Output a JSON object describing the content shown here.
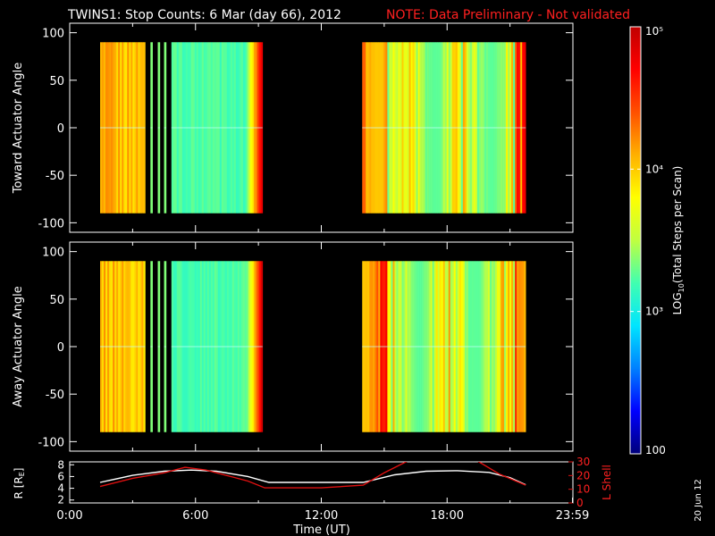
{
  "title": {
    "main": "TWINS1: Stop Counts:  6 Mar (day  66), 2012",
    "note": "NOTE: Data Preliminary - Not validated"
  },
  "date_stamp": "20 Jun 12",
  "colors": {
    "background": "#000000",
    "text": "#ffffff",
    "note": "#ff2020",
    "l_shell_line": "#e01010",
    "r_line": "#ffffff"
  },
  "chart_data": [
    {
      "type": "heatmap",
      "name": "toward",
      "ylabel": "Toward Actuator Angle",
      "ylim": [
        -110,
        110
      ],
      "yticks": [
        "100",
        "50",
        "0",
        "-50",
        "-100"
      ],
      "xlim": [
        0,
        24
      ],
      "xticks": [],
      "data_blocks": [
        {
          "x0": 1.45,
          "x1": 3.6,
          "y0": -90,
          "y1": 90
        },
        {
          "x0": 3.85,
          "x1": 3.95,
          "y0": -90,
          "y1": 90
        },
        {
          "x0": 4.2,
          "x1": 4.3,
          "y0": -90,
          "y1": 90
        },
        {
          "x0": 4.5,
          "x1": 4.6,
          "y0": -90,
          "y1": 90
        },
        {
          "x0": 4.85,
          "x1": 9.2,
          "y0": -90,
          "y1": 90
        },
        {
          "x0": 13.95,
          "x1": 21.75,
          "y0": -90,
          "y1": 90
        }
      ]
    },
    {
      "type": "heatmap",
      "name": "away",
      "ylabel": "Away Actuator Angle",
      "ylim": [
        -110,
        110
      ],
      "yticks": [
        "100",
        "50",
        "0",
        "-50",
        "-100"
      ],
      "xlim": [
        0,
        24
      ],
      "xticks": [],
      "data_blocks": [
        {
          "x0": 1.45,
          "x1": 3.6,
          "y0": -90,
          "y1": 90
        },
        {
          "x0": 3.85,
          "x1": 3.95,
          "y0": -90,
          "y1": 90
        },
        {
          "x0": 4.2,
          "x1": 4.3,
          "y0": -90,
          "y1": 90
        },
        {
          "x0": 4.5,
          "x1": 4.6,
          "y0": -90,
          "y1": 90
        },
        {
          "x0": 4.85,
          "x1": 9.2,
          "y0": -90,
          "y1": 90
        },
        {
          "x0": 13.95,
          "x1": 21.75,
          "y0": -90,
          "y1": 90
        }
      ]
    },
    {
      "type": "line",
      "name": "orbit",
      "xlabel": "Time (UT)",
      "xlim": [
        0,
        24
      ],
      "xticks": [
        {
          "x": 0,
          "label": "0:00"
        },
        {
          "x": 6,
          "label": "6:00"
        },
        {
          "x": 12,
          "label": "12:00"
        },
        {
          "x": 18,
          "label": "18:00"
        },
        {
          "x": 23.98,
          "label": "23:59"
        }
      ],
      "ylabel_left": "R [RE]",
      "ylim_left": [
        1.5,
        8.5
      ],
      "yticks_left": [
        "8",
        "6",
        "4",
        "2"
      ],
      "ylabel_right": "L Shell",
      "ylim_right": [
        0,
        30
      ],
      "yticks_right": [
        "30",
        "20",
        "10",
        "0"
      ],
      "series": [
        {
          "axis": "left",
          "x": [
            1.45,
            3.0,
            4.5,
            5.8,
            7.0,
            8.5,
            9.5,
            12.0,
            14.0,
            15.5,
            17.0,
            18.5,
            20.0,
            21.0,
            21.75
          ],
          "y": [
            5.0,
            6.2,
            6.9,
            7.1,
            6.9,
            6.0,
            5.0,
            5.0,
            5.0,
            6.3,
            6.9,
            7.0,
            6.7,
            5.8,
            4.6
          ]
        },
        {
          "axis": "right",
          "x": [
            1.45,
            3.0,
            4.5,
            5.5,
            6.5,
            7.5,
            8.5,
            9.3,
            12.0,
            14.0,
            15.0,
            16.3,
            19.3,
            20.5,
            21.75
          ],
          "y": [
            12,
            18,
            22,
            26,
            24,
            20,
            16,
            11,
            11,
            13,
            22,
            32,
            32,
            21,
            13
          ]
        }
      ]
    }
  ],
  "colorbar": {
    "type": "colorbar",
    "label": "LOG10(Total Steps per Scan)",
    "scale": "log",
    "range": [
      100,
      100000
    ],
    "ticks": [
      "10⁵",
      "10⁴",
      "10³",
      "100"
    ],
    "colors": [
      "#00007a",
      "#0000ff",
      "#0080ff",
      "#00e5ff",
      "#40ffb0",
      "#c0ff40",
      "#ffff00",
      "#ffb000",
      "#ff5000",
      "#ff0000",
      "#c00000"
    ]
  }
}
